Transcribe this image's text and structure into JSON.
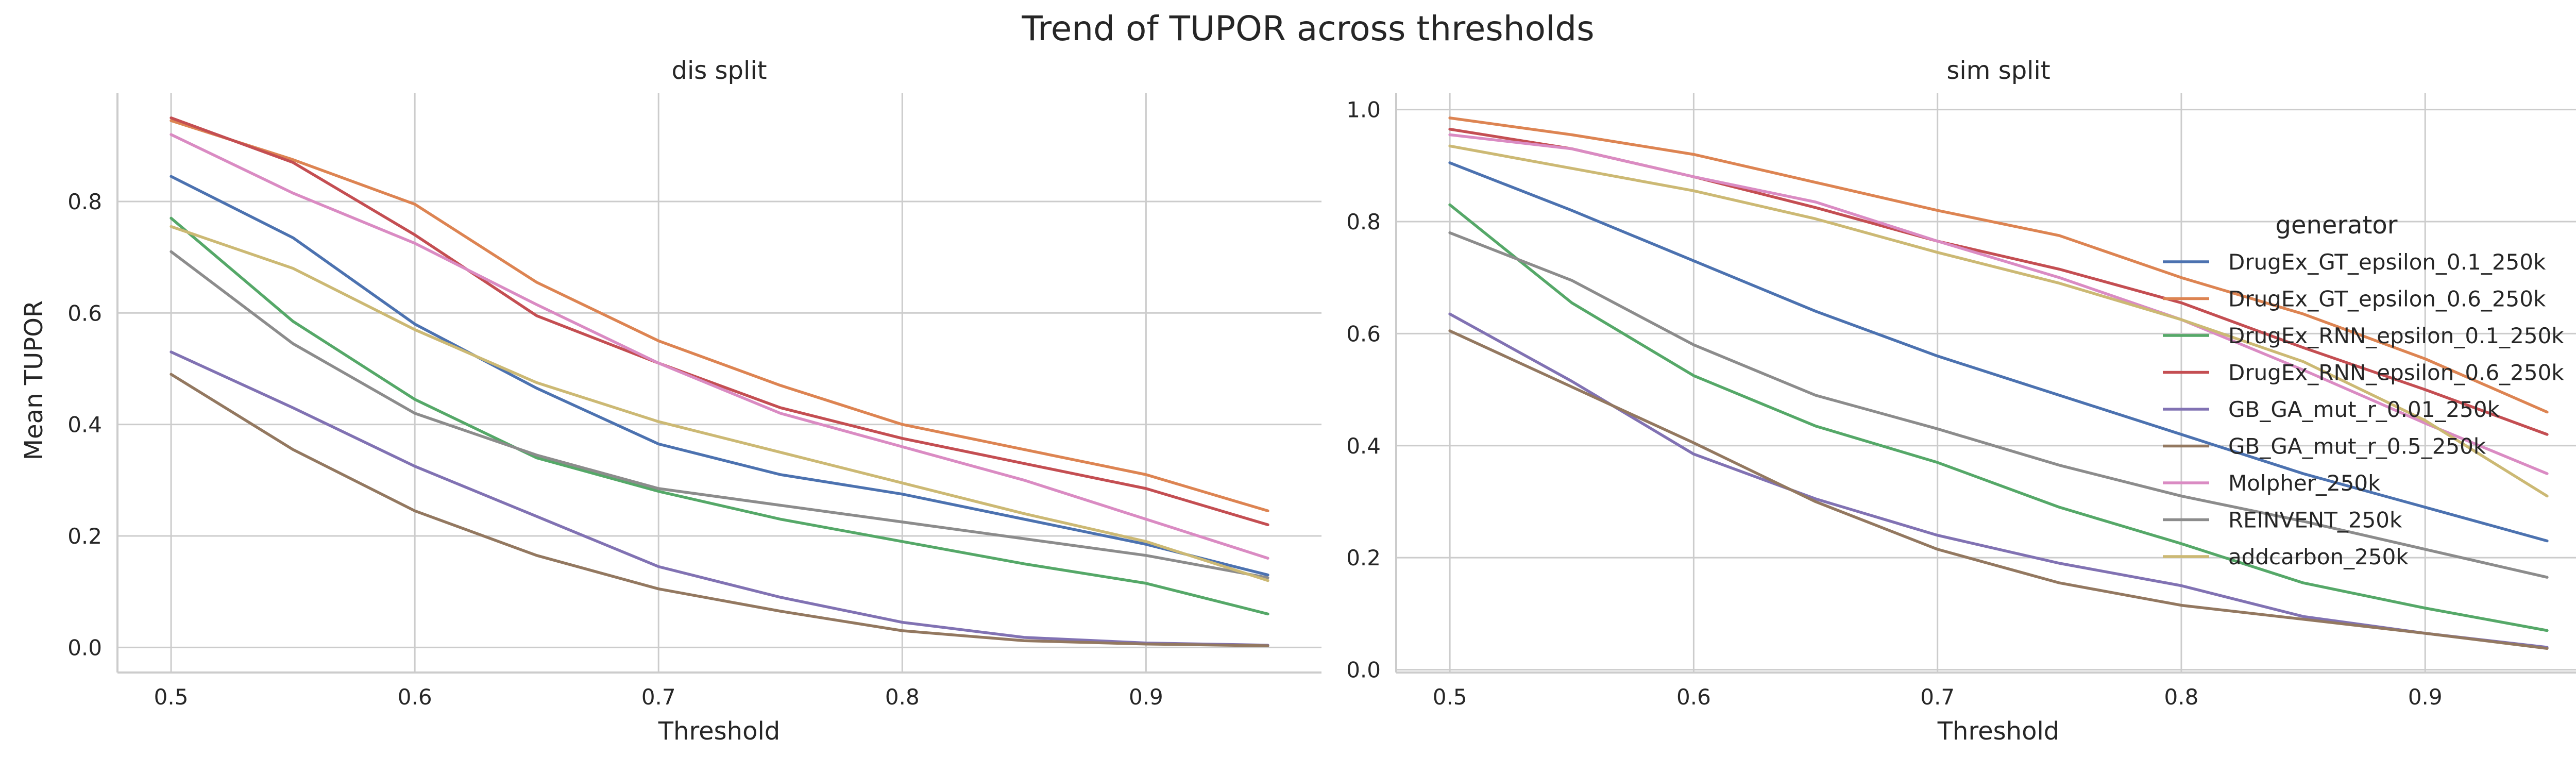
{
  "chart_data": {
    "type": "line",
    "title": "Trend of TUPOR across thresholds",
    "x": [
      0.5,
      0.55,
      0.6,
      0.65,
      0.7,
      0.75,
      0.8,
      0.85,
      0.9,
      0.95
    ],
    "xlabel": "Threshold",
    "ylabel": "Mean TUPOR",
    "legend": {
      "title": "generator",
      "placement": "center-right"
    },
    "grid": true,
    "colors": [
      "#4c72b0",
      "#dd8452",
      "#55a868",
      "#c44e52",
      "#8172b3",
      "#937860",
      "#da8bc3",
      "#8c8c8c",
      "#ccb974"
    ],
    "panels": [
      {
        "title": "dis split",
        "xlim": [
          0.478,
          0.972
        ],
        "ylim": [
          -0.045,
          0.995
        ],
        "xticks": [
          "0.5",
          "0.6",
          "0.7",
          "0.8",
          "0.9"
        ],
        "yticks": [
          "0.0",
          "0.2",
          "0.4",
          "0.6",
          "0.8"
        ],
        "series": [
          {
            "name": "DrugEx_GT_epsilon_0.1_250k",
            "values": [
              0.845,
              0.735,
              0.58,
              0.465,
              0.365,
              0.31,
              0.275,
              0.23,
              0.185,
              0.13
            ]
          },
          {
            "name": "DrugEx_GT_epsilon_0.6_250k",
            "values": [
              0.945,
              0.875,
              0.795,
              0.655,
              0.55,
              0.47,
              0.4,
              0.355,
              0.31,
              0.245
            ]
          },
          {
            "name": "DrugEx_RNN_epsilon_0.1_250k",
            "values": [
              0.77,
              0.585,
              0.445,
              0.34,
              0.28,
              0.23,
              0.19,
              0.15,
              0.115,
              0.06
            ]
          },
          {
            "name": "DrugEx_RNN_epsilon_0.6_250k",
            "values": [
              0.95,
              0.87,
              0.74,
              0.595,
              0.51,
              0.43,
              0.375,
              0.33,
              0.285,
              0.22
            ]
          },
          {
            "name": "GB_GA_mut_r_0.01_250k",
            "values": [
              0.53,
              0.43,
              0.325,
              0.235,
              0.145,
              0.09,
              0.045,
              0.018,
              0.008,
              0.004
            ]
          },
          {
            "name": "GB_GA_mut_r_0.5_250k",
            "values": [
              0.49,
              0.355,
              0.245,
              0.165,
              0.105,
              0.065,
              0.03,
              0.012,
              0.006,
              0.003
            ]
          },
          {
            "name": "Molpher_250k",
            "values": [
              0.92,
              0.815,
              0.725,
              0.615,
              0.51,
              0.42,
              0.36,
              0.3,
              0.23,
              0.16
            ]
          },
          {
            "name": "REINVENT_250k",
            "values": [
              0.71,
              0.545,
              0.42,
              0.345,
              0.285,
              0.255,
              0.225,
              0.195,
              0.165,
              0.125
            ]
          },
          {
            "name": "addcarbon_250k",
            "values": [
              0.755,
              0.68,
              0.57,
              0.475,
              0.405,
              0.35,
              0.295,
              0.24,
              0.19,
              0.12
            ]
          }
        ]
      },
      {
        "title": "sim split",
        "xlim": [
          0.478,
          0.972
        ],
        "ylim": [
          -0.005,
          1.03
        ],
        "xticks": [
          "0.5",
          "0.6",
          "0.7",
          "0.8",
          "0.9"
        ],
        "yticks": [
          "0.0",
          "0.2",
          "0.4",
          "0.6",
          "0.8",
          "1.0"
        ],
        "series": [
          {
            "name": "DrugEx_GT_epsilon_0.1_250k",
            "values": [
              0.905,
              0.82,
              0.73,
              0.64,
              0.56,
              0.49,
              0.42,
              0.35,
              0.29,
              0.23
            ]
          },
          {
            "name": "DrugEx_GT_epsilon_0.6_250k",
            "values": [
              0.985,
              0.955,
              0.92,
              0.87,
              0.82,
              0.775,
              0.7,
              0.635,
              0.555,
              0.46
            ]
          },
          {
            "name": "DrugEx_RNN_epsilon_0.1_250k",
            "values": [
              0.83,
              0.655,
              0.525,
              0.435,
              0.37,
              0.29,
              0.225,
              0.155,
              0.11,
              0.07
            ]
          },
          {
            "name": "DrugEx_RNN_epsilon_0.6_250k",
            "values": [
              0.965,
              0.93,
              0.88,
              0.825,
              0.765,
              0.715,
              0.655,
              0.575,
              0.5,
              0.42
            ]
          },
          {
            "name": "GB_GA_mut_r_0.01_250k",
            "values": [
              0.635,
              0.515,
              0.385,
              0.305,
              0.24,
              0.19,
              0.15,
              0.095,
              0.065,
              0.04
            ]
          },
          {
            "name": "GB_GA_mut_r_0.5_250k",
            "values": [
              0.605,
              0.505,
              0.405,
              0.3,
              0.215,
              0.155,
              0.115,
              0.09,
              0.065,
              0.038
            ]
          },
          {
            "name": "Molpher_250k",
            "values": [
              0.955,
              0.93,
              0.88,
              0.835,
              0.765,
              0.7,
              0.625,
              0.535,
              0.44,
              0.35
            ]
          },
          {
            "name": "REINVENT_250k",
            "values": [
              0.78,
              0.695,
              0.58,
              0.49,
              0.43,
              0.365,
              0.31,
              0.265,
              0.215,
              0.165
            ]
          },
          {
            "name": "addcarbon_250k",
            "values": [
              0.935,
              0.895,
              0.855,
              0.805,
              0.745,
              0.69,
              0.625,
              0.55,
              0.445,
              0.31
            ]
          }
        ]
      }
    ]
  }
}
